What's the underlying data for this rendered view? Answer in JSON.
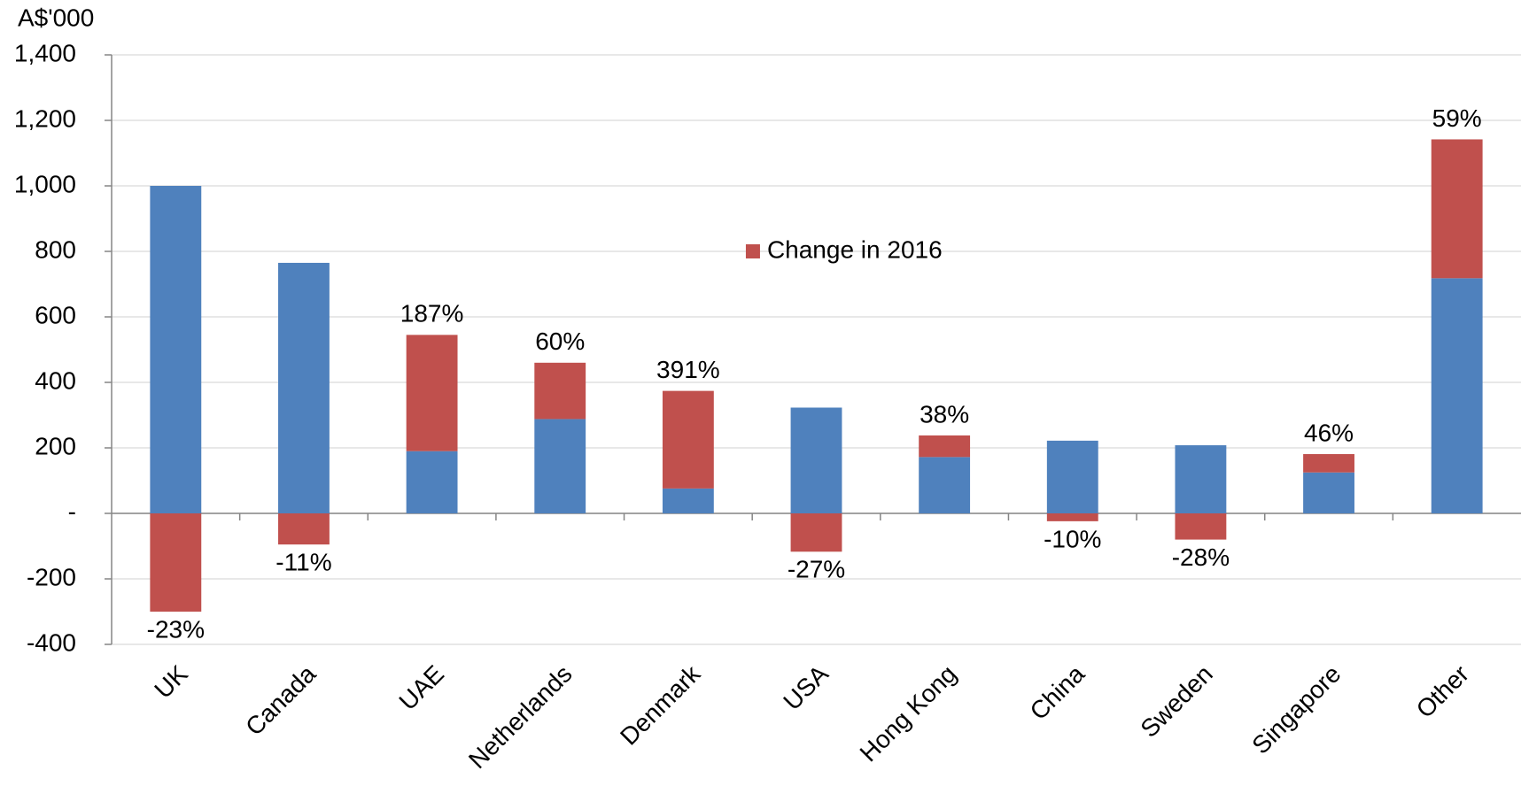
{
  "chart_data": {
    "type": "bar",
    "stacked": true,
    "ylabel": "A$'000",
    "categories": [
      "UK",
      "Canada",
      "UAE",
      "Netherlands",
      "Denmark",
      "USA",
      "Hong Kong",
      "China",
      "Sweden",
      "Singapore",
      "Other"
    ],
    "series": [
      {
        "color": "#4f81bd",
        "values": [
          1000,
          765,
          190,
          288,
          76,
          323,
          172,
          222,
          208,
          125,
          718
        ]
      },
      {
        "name": "Change in 2016",
        "color": "#c0504d",
        "values": [
          -300,
          -95,
          355,
          172,
          298,
          -117,
          66,
          -24,
          -80,
          56,
          424
        ]
      }
    ],
    "annotations": [
      "-23%",
      "-11%",
      "187%",
      "60%",
      "391%",
      "-27%",
      "38%",
      "-10%",
      "-28%",
      "46%",
      "59%"
    ],
    "ylim": [
      -400,
      1400
    ],
    "yticks": [
      -400,
      -200,
      {
        "value": 0,
        "label": "-"
      },
      200,
      400,
      600,
      800,
      {
        "value": 1000,
        "label": "1,000"
      },
      {
        "value": 1200,
        "label": "1,200"
      },
      {
        "value": 1400,
        "label": "1,400"
      }
    ],
    "grid": true,
    "legend": "center"
  }
}
